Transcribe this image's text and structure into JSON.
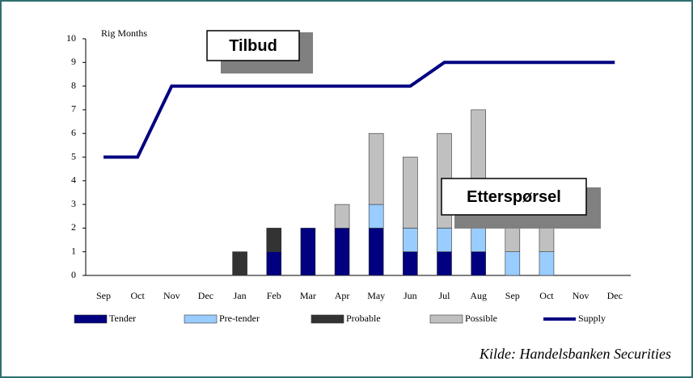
{
  "chart_data": {
    "type": "bar",
    "y_label": "Rig Months",
    "categories": [
      "Sep",
      "Oct",
      "Nov",
      "Dec",
      "Jan",
      "Feb",
      "Mar",
      "Apr",
      "May",
      "Jun",
      "Jul",
      "Aug",
      "Sep",
      "Oct",
      "Nov",
      "Dec"
    ],
    "series": [
      {
        "name": "Tender",
        "color": "#000080",
        "values": [
          0,
          0,
          0,
          0,
          0,
          1,
          2,
          2,
          2,
          1,
          1,
          1,
          0,
          0,
          0,
          0
        ]
      },
      {
        "name": "Pre-tender",
        "color": "#99ccff",
        "values": [
          0,
          0,
          0,
          0,
          0,
          0,
          0,
          0,
          1,
          1,
          1,
          1,
          1,
          1,
          0,
          0
        ]
      },
      {
        "name": "Probable",
        "color": "#333333",
        "values": [
          0,
          0,
          0,
          0,
          1,
          1,
          0,
          0,
          0,
          0,
          0,
          0,
          0,
          0,
          0,
          0
        ]
      },
      {
        "name": "Possible",
        "color": "#c0c0c0",
        "values": [
          0,
          0,
          0,
          0,
          0,
          0,
          0,
          1,
          3,
          3,
          4,
          5,
          2,
          1,
          0,
          0
        ]
      },
      {
        "name": "Supply",
        "type": "line",
        "color": "#000080",
        "values": [
          5,
          5,
          8,
          8,
          8,
          8,
          8,
          8,
          8,
          8,
          9,
          9,
          9,
          9,
          9,
          9
        ]
      }
    ],
    "annotations": [
      "Tilbud",
      "Etterspørsel"
    ],
    "source": "Kilde: Handelsbanken Securities",
    "ylim": [
      0,
      10
    ],
    "yticks": [
      0,
      1,
      2,
      3,
      4,
      5,
      6,
      7,
      8,
      9,
      10
    ],
    "stacked": true
  }
}
